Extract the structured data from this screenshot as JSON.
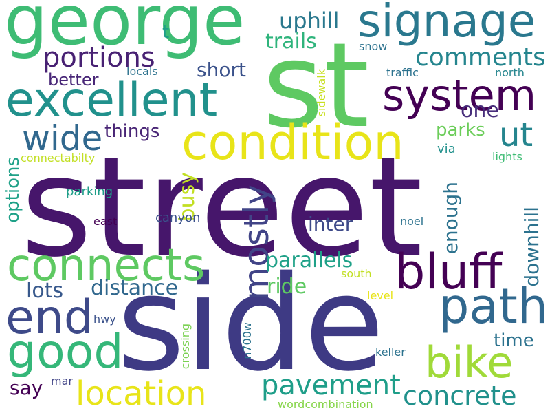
{
  "words": [
    {
      "text": "street",
      "color": "#46166b"
    },
    {
      "text": "side",
      "color": "#3e3a84"
    },
    {
      "text": "st",
      "color": "#5ec962"
    },
    {
      "text": "george",
      "color": "#3ebc74"
    },
    {
      "text": "signage",
      "color": "#2a788e"
    },
    {
      "text": "excellent",
      "color": "#21918c"
    },
    {
      "text": "system",
      "color": "#440154"
    },
    {
      "text": "condition",
      "color": "#e8e419"
    },
    {
      "text": "connects",
      "color": "#5ec962"
    },
    {
      "text": "bluff",
      "color": "#440154"
    },
    {
      "text": "path",
      "color": "#31688e"
    },
    {
      "text": "end",
      "color": "#3e4a89"
    },
    {
      "text": "good",
      "color": "#35b779"
    },
    {
      "text": "bike",
      "color": "#a0da39"
    },
    {
      "text": "location",
      "color": "#e8e419"
    },
    {
      "text": "portions",
      "color": "#482173"
    },
    {
      "text": "wide",
      "color": "#31688e"
    },
    {
      "text": "ut",
      "color": "#25858e"
    },
    {
      "text": "comments",
      "color": "#25858e"
    },
    {
      "text": "mostly",
      "color": "#414487"
    },
    {
      "text": "pavement",
      "color": "#1f9e89"
    },
    {
      "text": "concrete",
      "color": "#21918c"
    },
    {
      "text": "uphill",
      "color": "#2a788e"
    },
    {
      "text": "trails",
      "color": "#2fb47c"
    },
    {
      "text": "short",
      "color": "#3b528b"
    },
    {
      "text": "better",
      "color": "#482677"
    },
    {
      "text": "things",
      "color": "#482475"
    },
    {
      "text": "one",
      "color": "#472d7b"
    },
    {
      "text": "parks",
      "color": "#6ccd5a"
    },
    {
      "text": "distance",
      "color": "#31688e"
    },
    {
      "text": "lots",
      "color": "#38598c"
    },
    {
      "text": "parallels",
      "color": "#1fa188"
    },
    {
      "text": "ride",
      "color": "#5ec962"
    },
    {
      "text": "inter",
      "color": "#3e4a89"
    },
    {
      "text": "say",
      "color": "#440154"
    },
    {
      "text": "time",
      "color": "#2c728e"
    },
    {
      "text": "busy",
      "color": "#c2df23"
    },
    {
      "text": "options",
      "color": "#1fa188"
    },
    {
      "text": "enough",
      "color": "#2c728e"
    },
    {
      "text": "downhill",
      "color": "#2c728e"
    },
    {
      "text": "t",
      "color": "#1f9e89"
    },
    {
      "text": "snow",
      "color": "#2c728e"
    },
    {
      "text": "locals",
      "color": "#2c728e"
    },
    {
      "text": "traffic",
      "color": "#2c728e"
    },
    {
      "text": "north",
      "color": "#25858e"
    },
    {
      "text": "sidewalk",
      "color": "#c8e020"
    },
    {
      "text": "via",
      "color": "#21918c"
    },
    {
      "text": "lights",
      "color": "#3ebc74"
    },
    {
      "text": "connectabilty",
      "color": "#c2df23"
    },
    {
      "text": "parking",
      "color": "#1f9e89"
    },
    {
      "text": "east",
      "color": "#440154"
    },
    {
      "text": "canyon",
      "color": "#3b528b"
    },
    {
      "text": "noel",
      "color": "#2c728e"
    },
    {
      "text": "south",
      "color": "#c2df23"
    },
    {
      "text": "level",
      "color": "#e8e419"
    },
    {
      "text": "hwy",
      "color": "#3b528b"
    },
    {
      "text": "crossing",
      "color": "#7ad151"
    },
    {
      "text": "n700w",
      "color": "#2c728e"
    },
    {
      "text": "keller",
      "color": "#2c728e"
    },
    {
      "text": "mar",
      "color": "#414487"
    },
    {
      "text": "wordcombination",
      "color": "#86d549"
    }
  ]
}
